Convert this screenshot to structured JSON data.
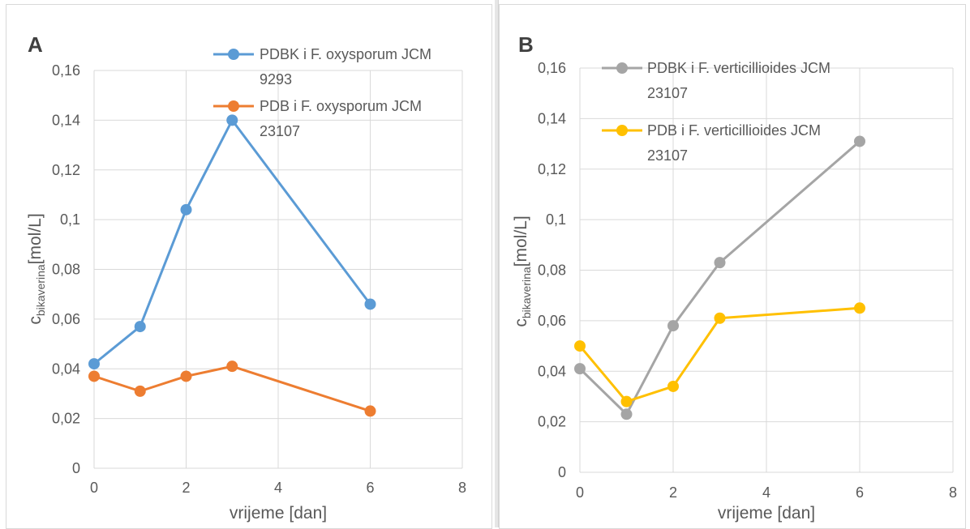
{
  "chart_data": [
    {
      "type": "line",
      "panel_label": "A",
      "xlabel": "vrijeme [dan]",
      "ylabel_main": "c",
      "ylabel_sub": "bikaverina",
      "ylabel_unit": "[mol/L]",
      "xlim": [
        0,
        8
      ],
      "ylim": [
        0,
        0.16
      ],
      "x_ticks": [
        "0",
        "2",
        "4",
        "6",
        "8"
      ],
      "y_ticks": [
        "0",
        "0,02",
        "0,04",
        "0,06",
        "0,08",
        "0,1",
        "0,12",
        "0,14",
        "0,16"
      ],
      "grid": true,
      "legend_position": "top-right",
      "series": [
        {
          "name_lines": [
            "PDBK i F. oxysporum JCM",
            "9293"
          ],
          "color": "#5b9bd5",
          "x": [
            0,
            1,
            2,
            3,
            6
          ],
          "values": [
            0.042,
            0.057,
            0.104,
            0.14,
            0.066
          ]
        },
        {
          "name_lines": [
            "PDB i F. oxysporum JCM",
            "23107"
          ],
          "color": "#ed7d31",
          "x": [
            0,
            1,
            2,
            3,
            6
          ],
          "values": [
            0.037,
            0.031,
            0.037,
            0.041,
            0.023
          ]
        }
      ]
    },
    {
      "type": "line",
      "panel_label": "B",
      "xlabel": "vrijeme [dan]",
      "ylabel_main": "c",
      "ylabel_sub": "bikaverina",
      "ylabel_unit": "[mol/L]",
      "xlim": [
        0,
        8
      ],
      "ylim": [
        0,
        0.16
      ],
      "x_ticks": [
        "0",
        "2",
        "4",
        "6",
        "8"
      ],
      "y_ticks": [
        "0",
        "0,02",
        "0,04",
        "0,06",
        "0,08",
        "0,1",
        "0,12",
        "0,14",
        "0,16"
      ],
      "grid": true,
      "legend_position": "top-right",
      "series": [
        {
          "name_lines": [
            "PDBK i F. verticillioides JCM",
            "23107"
          ],
          "color": "#a5a5a5",
          "x": [
            0,
            1,
            2,
            3,
            6
          ],
          "values": [
            0.041,
            0.023,
            0.058,
            0.083,
            0.131
          ]
        },
        {
          "name_lines": [
            "PDB i F. verticillioides JCM",
            "23107"
          ],
          "color": "#ffc000",
          "x": [
            0,
            1,
            2,
            3,
            6
          ],
          "values": [
            0.05,
            0.028,
            0.034,
            0.061,
            0.065
          ]
        }
      ]
    }
  ]
}
